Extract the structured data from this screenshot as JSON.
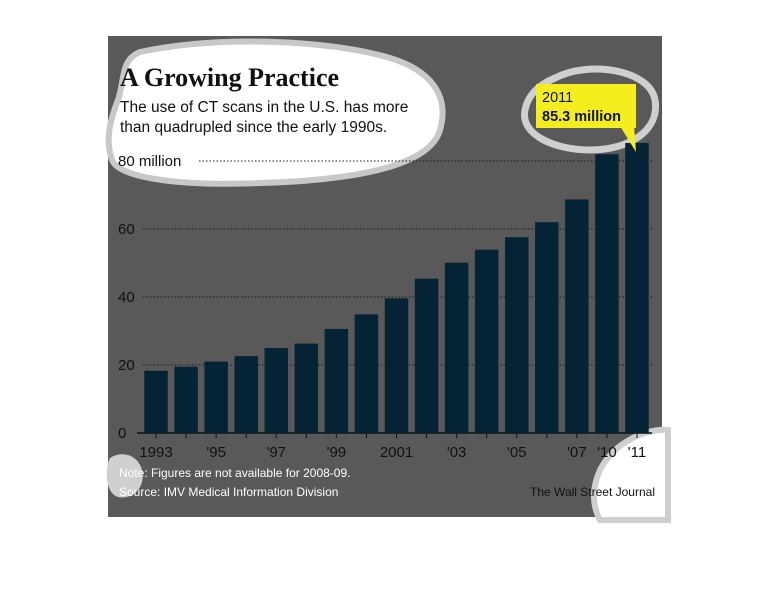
{
  "chart_data": {
    "type": "bar",
    "title": "A Growing Practice",
    "subtitle": "The use of CT scans in the U.S. has more than quadrupled since the early 1990s.",
    "ylabel": "",
    "xlabel": "",
    "ylim": [
      0,
      80
    ],
    "yticks": [
      {
        "value": 0,
        "label": "0"
      },
      {
        "value": 20,
        "label": "20"
      },
      {
        "value": 40,
        "label": "40"
      },
      {
        "value": 60,
        "label": "60"
      },
      {
        "value": 80,
        "label": "80 million"
      }
    ],
    "categories": [
      "1993",
      "1994",
      "1995",
      "1996",
      "1997",
      "1998",
      "1999",
      "2000",
      "2001",
      "2002",
      "2003",
      "2004",
      "2005",
      "2006",
      "2007",
      "2010",
      "2011"
    ],
    "tick_labels": [
      "1993",
      "",
      "'95",
      "",
      "'97",
      "",
      "'99",
      "",
      "2001",
      "",
      "'03",
      "",
      "'05",
      "",
      "'07",
      "'10",
      "'11"
    ],
    "values": [
      18.3,
      19.5,
      21.0,
      22.6,
      25.0,
      26.3,
      30.6,
      34.9,
      39.6,
      45.4,
      50.1,
      53.9,
      57.6,
      62.0,
      68.7,
      82.0,
      85.3
    ],
    "callout": {
      "year": "2011",
      "value": "85.3 million"
    },
    "note": "Note: Figures are not available for 2008-09.",
    "source": "Source: IMV Medical Information Division",
    "credit": "The Wall Street Journal",
    "colors": {
      "background": "#595959",
      "bar": "#042436",
      "callout": "#f5ee1f",
      "text": "#111111"
    },
    "grid": "dotted, on labeled ticks"
  }
}
